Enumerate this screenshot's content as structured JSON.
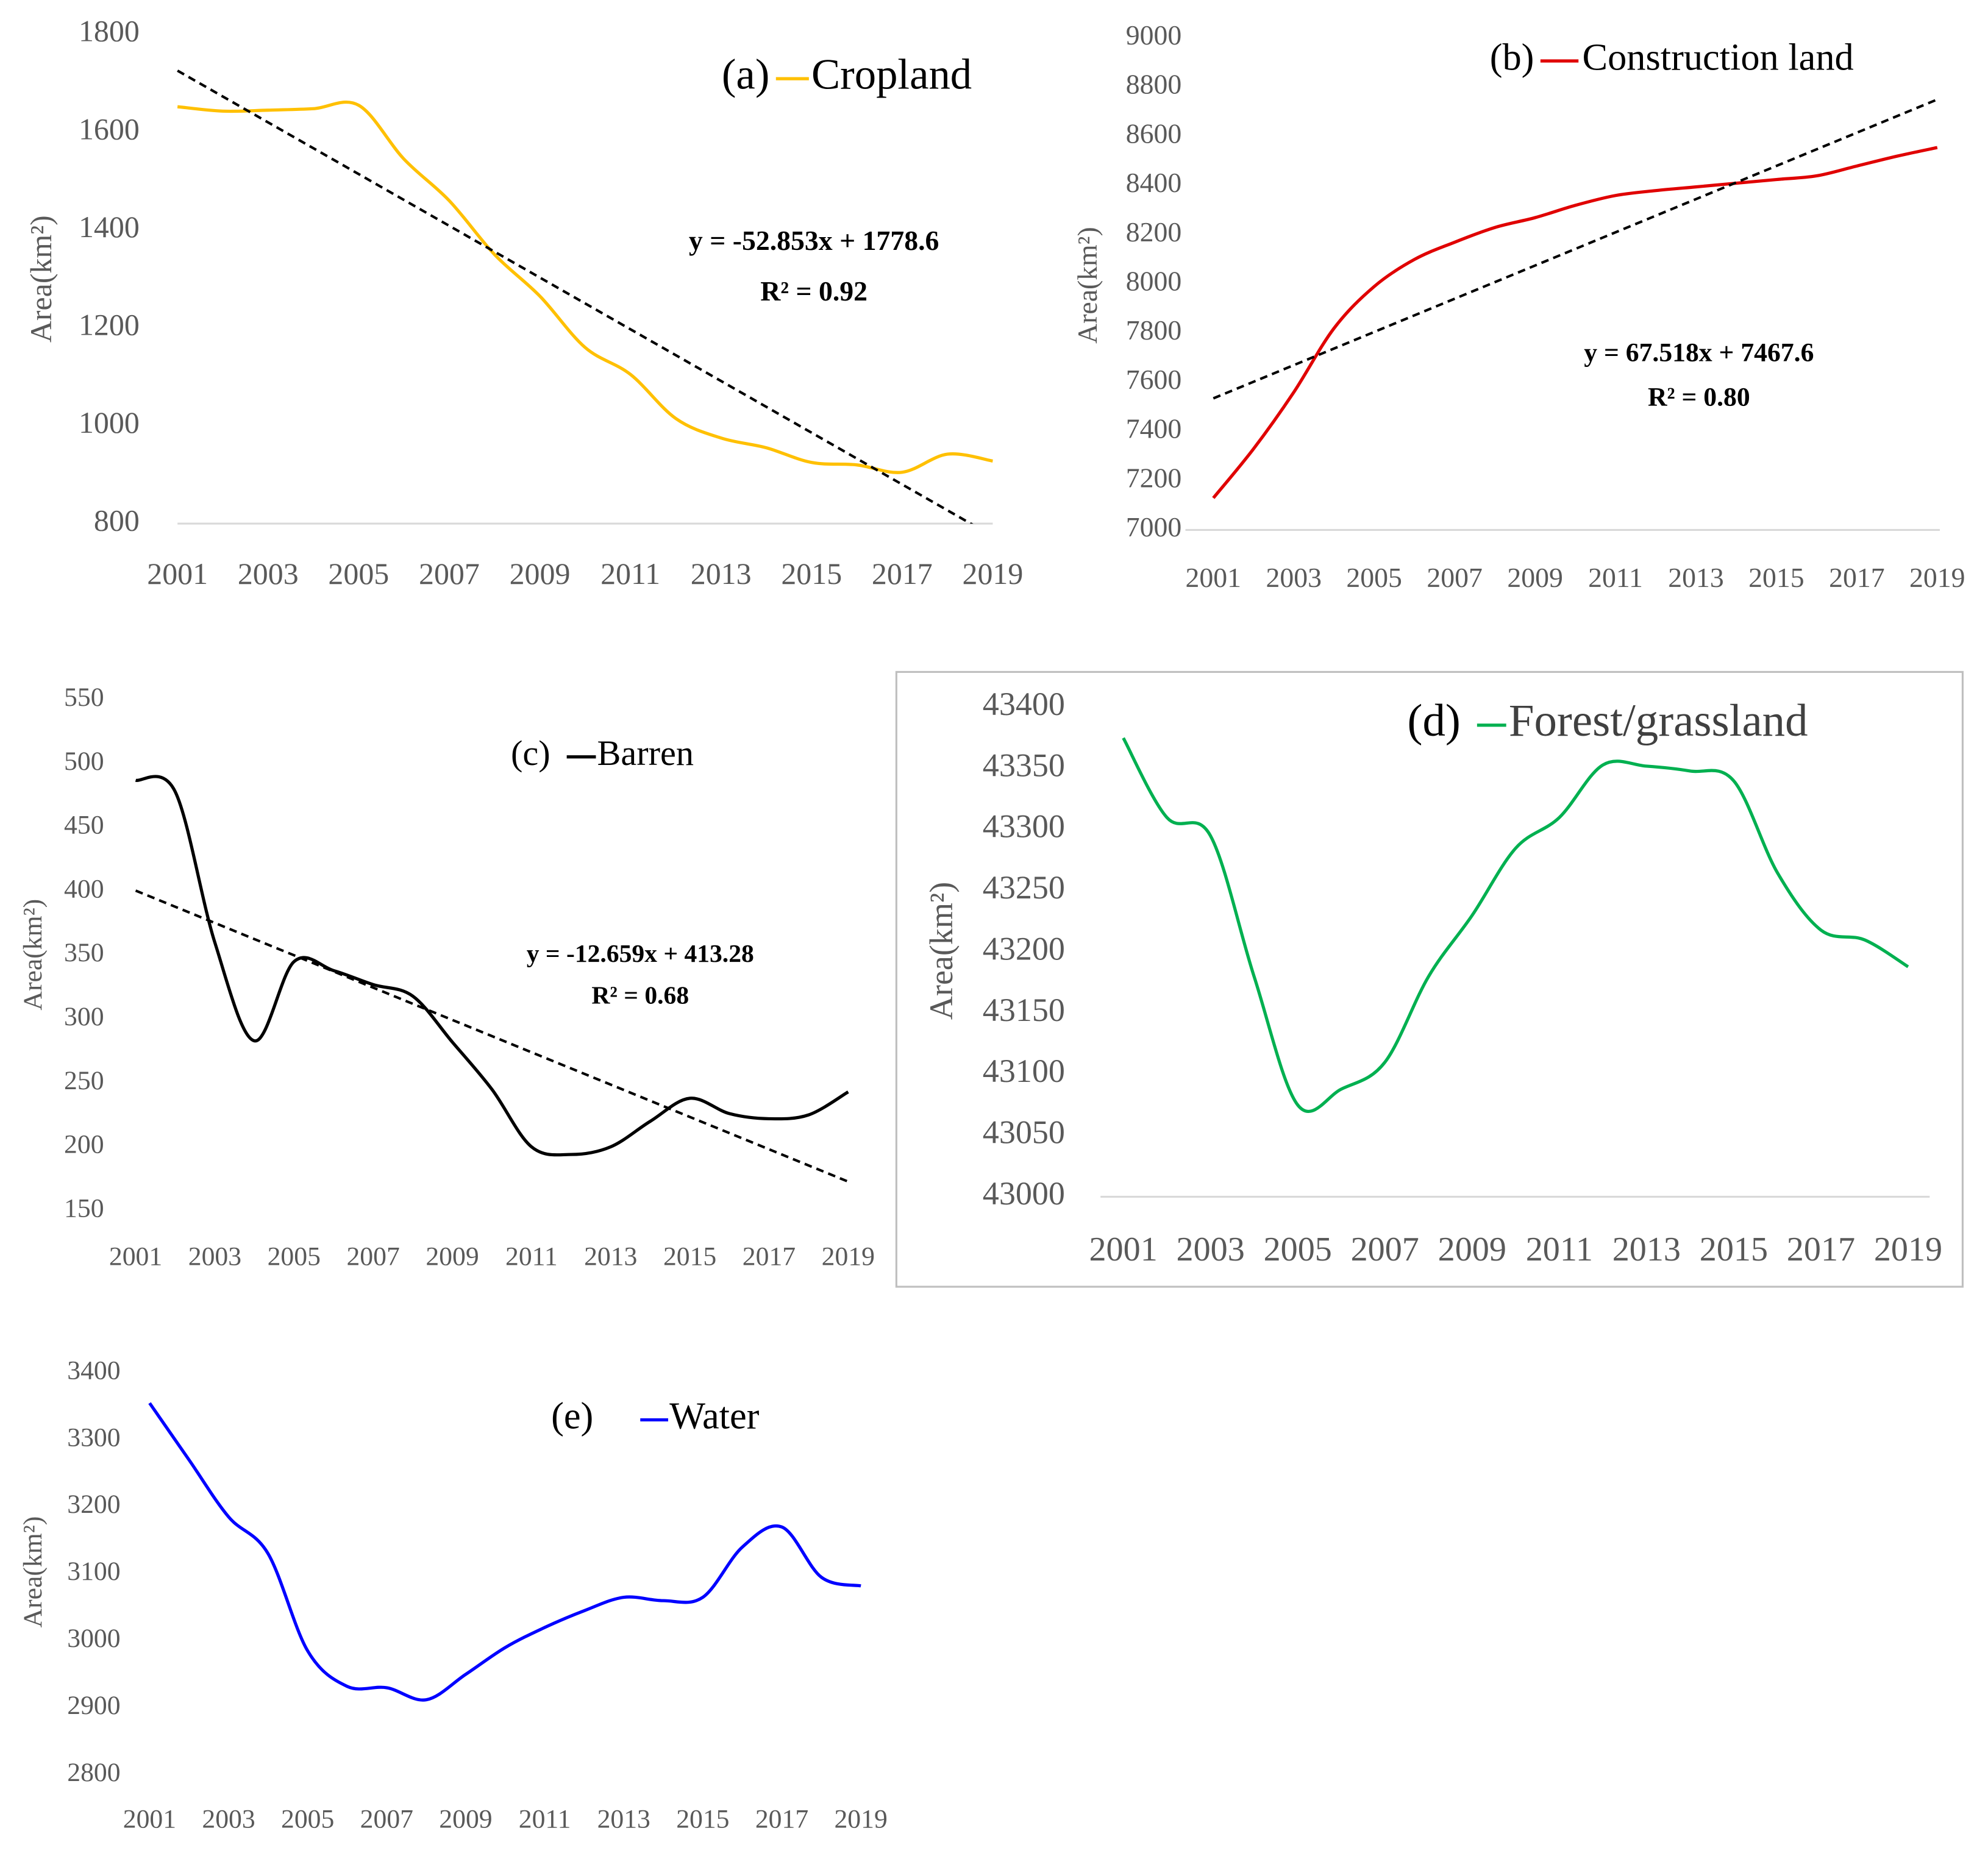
{
  "chart_data": [
    {
      "type": "line",
      "title": "(a)",
      "ylabel": "Area(km²)",
      "x": [
        2001,
        2002,
        2003,
        2004,
        2005,
        2006,
        2007,
        2008,
        2009,
        2010,
        2011,
        2012,
        2013,
        2014,
        2015,
        2016,
        2017,
        2018,
        2019
      ],
      "xlim": [
        2001,
        2019
      ],
      "xticks": [
        2001,
        2003,
        2005,
        2007,
        2009,
        2011,
        2013,
        2015,
        2017,
        2019
      ],
      "ylim": [
        800,
        1800
      ],
      "yticks": [
        800,
        1000,
        1200,
        1400,
        1600,
        1800
      ],
      "series": [
        {
          "name": "Cropland",
          "color": "#FFC000",
          "values": [
            1652,
            1643,
            1645,
            1648,
            1655,
            1545,
            1460,
            1350,
            1265,
            1160,
            1105,
            1015,
            975,
            955,
            925,
            920,
            905,
            942,
            928
          ]
        }
      ],
      "trendline": {
        "slope": -52.853,
        "intercept": 1778.6,
        "equation": "y = -52.853x + 1778.6",
        "r_squared": "R² = 0.92"
      }
    },
    {
      "type": "line",
      "title": "(b)",
      "ylabel": "Area(km²)",
      "x": [
        2001,
        2002,
        2003,
        2004,
        2005,
        2006,
        2007,
        2008,
        2009,
        2010,
        2011,
        2012,
        2013,
        2014,
        2015,
        2016,
        2017,
        2018,
        2019
      ],
      "xlim": [
        2001,
        2019
      ],
      "xticks": [
        2001,
        2003,
        2005,
        2007,
        2009,
        2011,
        2013,
        2015,
        2017,
        2019
      ],
      "ylim": [
        7000,
        9000
      ],
      "yticks": [
        7000,
        7200,
        7400,
        7600,
        7800,
        8000,
        8200,
        8400,
        8600,
        8800,
        9000
      ],
      "series": [
        {
          "name": "Construction land",
          "color": "#E00000",
          "values": [
            7130,
            7330,
            7560,
            7820,
            7990,
            8100,
            8170,
            8230,
            8270,
            8320,
            8360,
            8380,
            8395,
            8410,
            8425,
            8440,
            8480,
            8520,
            8555
          ]
        }
      ],
      "trendline": {
        "slope": 67.518,
        "intercept": 7467.6,
        "equation": "y = 67.518x + 7467.6",
        "r_squared": "R² = 0.80"
      }
    },
    {
      "type": "line",
      "title": "(c)",
      "ylabel": "Area(km²)",
      "x": [
        2001,
        2002,
        2003,
        2004,
        2005,
        2006,
        2007,
        2008,
        2009,
        2010,
        2011,
        2012,
        2013,
        2014,
        2015,
        2016,
        2017,
        2018,
        2019
      ],
      "xlim": [
        2001,
        2019
      ],
      "xticks": [
        2001,
        2003,
        2005,
        2007,
        2009,
        2011,
        2013,
        2015,
        2017,
        2019
      ],
      "ylim": [
        150,
        550
      ],
      "yticks": [
        150,
        200,
        250,
        300,
        350,
        400,
        450,
        500,
        550
      ],
      "series": [
        {
          "name": "Barren",
          "color": "#000000",
          "values": [
            487,
            478,
            360,
            283,
            345,
            338,
            327,
            318,
            282,
            245,
            200,
            194,
            200,
            220,
            238,
            226,
            222,
            225,
            243
          ]
        }
      ],
      "trendline": {
        "slope": -12.659,
        "intercept": 413.28,
        "equation": "y = -12.659x + 413.28",
        "r_squared": "R² = 0.68"
      }
    },
    {
      "type": "line",
      "title": "(d)",
      "ylabel": "Area(km²)",
      "border": true,
      "x": [
        2001,
        2002,
        2003,
        2004,
        2005,
        2006,
        2007,
        2008,
        2009,
        2010,
        2011,
        2012,
        2013,
        2014,
        2015,
        2016,
        2017,
        2018,
        2019
      ],
      "xlim": [
        2001,
        2019
      ],
      "xticks": [
        2001,
        2003,
        2005,
        2007,
        2009,
        2011,
        2013,
        2015,
        2017,
        2019
      ],
      "ylim": [
        43000,
        43400
      ],
      "yticks": [
        43000,
        43050,
        43100,
        43150,
        43200,
        43250,
        43300,
        43350,
        43400
      ],
      "series": [
        {
          "name": "Forest/grassland",
          "color": "#00B050",
          "values": [
            43375,
            43310,
            43295,
            43180,
            43075,
            43088,
            43110,
            43180,
            43230,
            43285,
            43310,
            43353,
            43352,
            43348,
            43340,
            43265,
            43218,
            43210,
            43188
          ]
        }
      ]
    },
    {
      "type": "line",
      "title": "(e)",
      "ylabel": "Area(km²)",
      "x": [
        2001,
        2002,
        2003,
        2004,
        2005,
        2006,
        2007,
        2008,
        2009,
        2010,
        2011,
        2012,
        2013,
        2014,
        2015,
        2016,
        2017,
        2018,
        2019
      ],
      "xlim": [
        2001,
        2019
      ],
      "xticks": [
        2001,
        2003,
        2005,
        2007,
        2009,
        2011,
        2013,
        2015,
        2017,
        2019
      ],
      "ylim": [
        2800,
        3400
      ],
      "yticks": [
        2800,
        2900,
        3000,
        3100,
        3200,
        3300,
        3400
      ],
      "series": [
        {
          "name": "Water",
          "color": "#0000FF",
          "values": [
            3355,
            3270,
            3185,
            3130,
            2985,
            2932,
            2930,
            2912,
            2950,
            2990,
            3020,
            3045,
            3065,
            3060,
            3065,
            3140,
            3170,
            3095,
            3082
          ]
        }
      ]
    }
  ]
}
